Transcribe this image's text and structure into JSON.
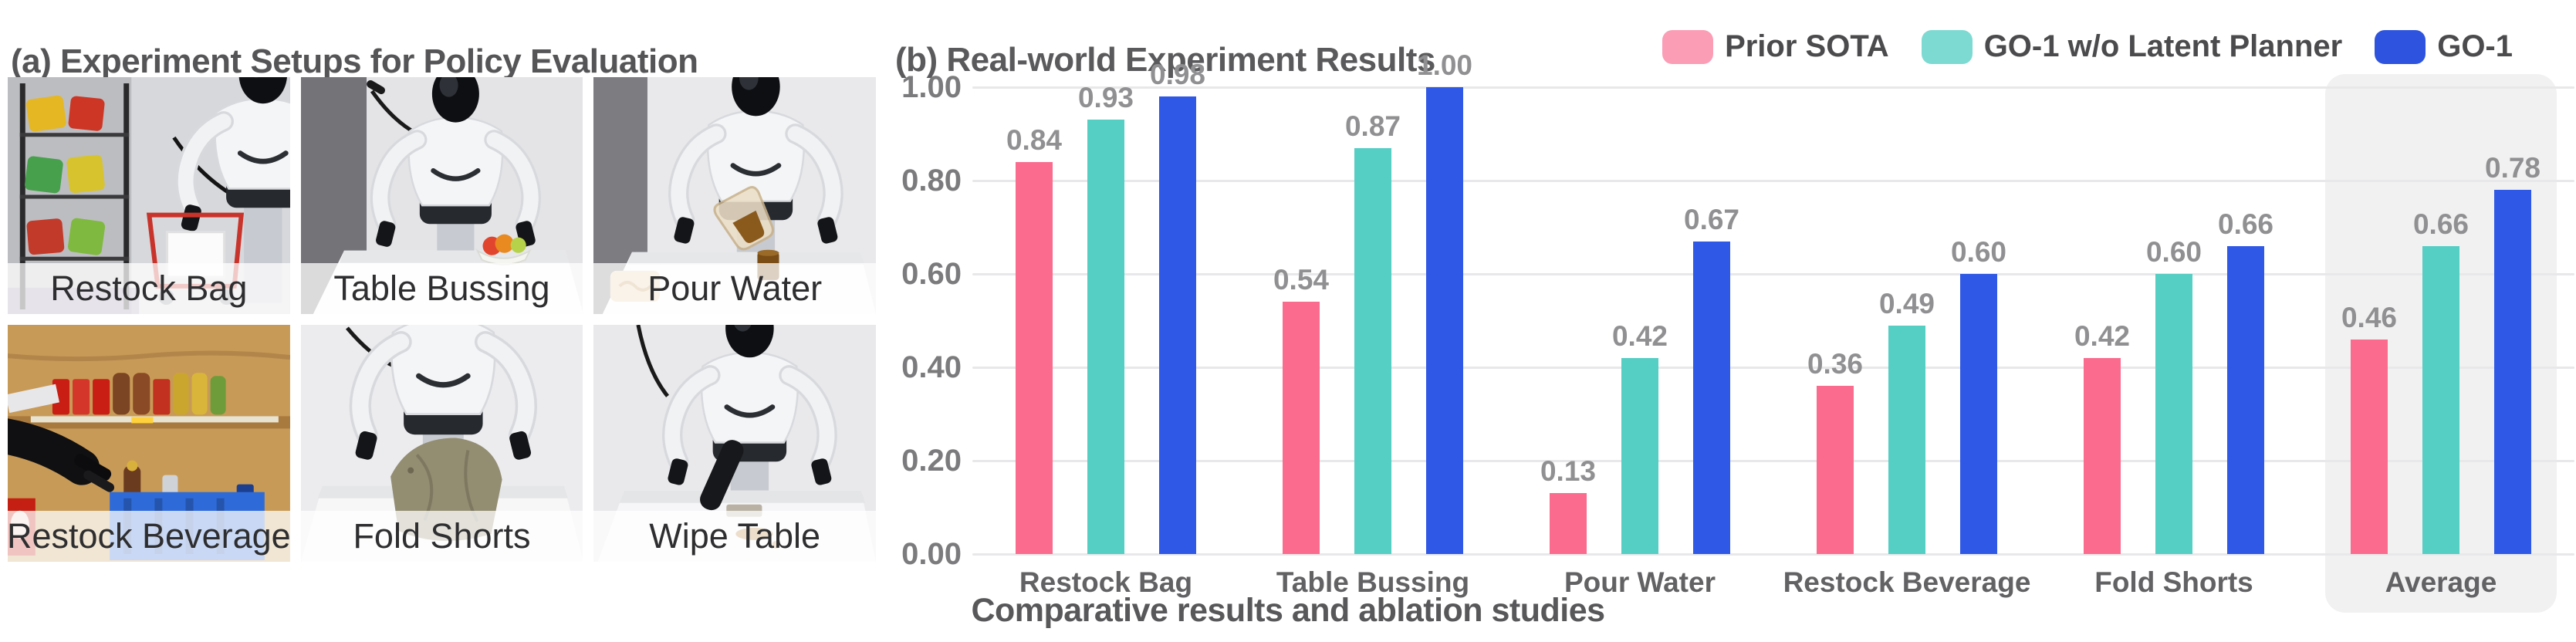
{
  "panel_a": {
    "title": "(a) Experiment Setups for Policy Evaluation",
    "tiles": [
      {
        "label": "Restock Bag"
      },
      {
        "label": "Table Bussing"
      },
      {
        "label": "Pour Water"
      },
      {
        "label": "Restock Beverage"
      },
      {
        "label": "Fold Shorts"
      },
      {
        "label": "Wipe Table"
      }
    ]
  },
  "panel_b": {
    "title": "(b) Real-world Experiment Results",
    "caption": "Comparative results and ablation studies"
  },
  "chart_data": {
    "type": "bar",
    "title": "(b) Real-world Experiment Results",
    "categories": [
      "Restock Bag",
      "Table Bussing",
      "Pour Water",
      "Restock Beverage",
      "Fold Shorts",
      "Average"
    ],
    "series": [
      {
        "name": "Prior SOTA",
        "color": "#FA6B8E",
        "legend_color": "#FB9DB5",
        "values": [
          0.84,
          0.54,
          0.13,
          0.36,
          0.42,
          0.46
        ]
      },
      {
        "name": "GO-1 w/o Latent Planner",
        "color": "#55CEC4",
        "legend_color": "#7DDAD2",
        "values": [
          0.93,
          0.87,
          0.42,
          0.49,
          0.6,
          0.66
        ]
      },
      {
        "name": "GO-1",
        "color": "#2F58E6",
        "legend_color": "#2E54DF",
        "values": [
          0.98,
          1.0,
          0.67,
          0.6,
          0.66,
          0.78
        ]
      }
    ],
    "ylabel": "",
    "xlabel": "",
    "ylim": [
      0,
      1.0
    ],
    "y_ticks": [
      "1.00",
      "0.80",
      "0.60",
      "0.40",
      "0.20",
      "0.00"
    ],
    "grid": true,
    "legend_position": "top-right",
    "highlighted_category": "Average",
    "value_labels": true,
    "colors": {
      "grid": "#e8e8ea",
      "value_label": "#909092",
      "axis_tick": "#7b7b7d",
      "category_label": "#626264",
      "highlight_bg": "#f1f1f2"
    }
  }
}
